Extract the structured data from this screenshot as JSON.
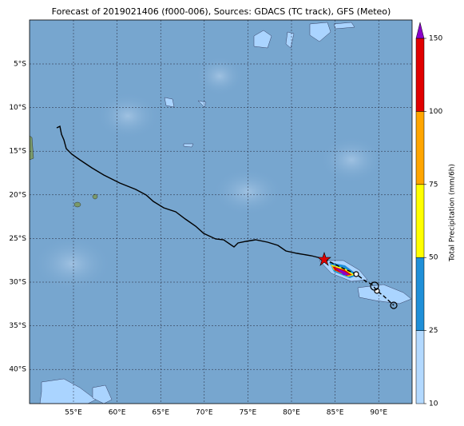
{
  "title": "Forecast of 2019021406 (f000-006), Sources: GDACS (TC track), GFS (Meteo)",
  "map": {
    "lon_labels": [
      "55°E",
      "60°E",
      "65°E",
      "70°E",
      "75°E",
      "80°E",
      "85°E",
      "90°E"
    ],
    "lat_labels": [
      "5°S",
      "10°S",
      "15°S",
      "20°S",
      "25°S",
      "30°S",
      "35°S",
      "40°S"
    ]
  },
  "colorbar": {
    "label": "Total Precipitation (mm/6h)",
    "ticks": [
      10,
      25,
      50,
      75,
      100,
      150
    ],
    "colors": [
      "#b3d9ff",
      "#1f8fd8",
      "#ffff00",
      "#ffa500",
      "#e00000"
    ],
    "extend_color": "#8a00c8"
  }
}
